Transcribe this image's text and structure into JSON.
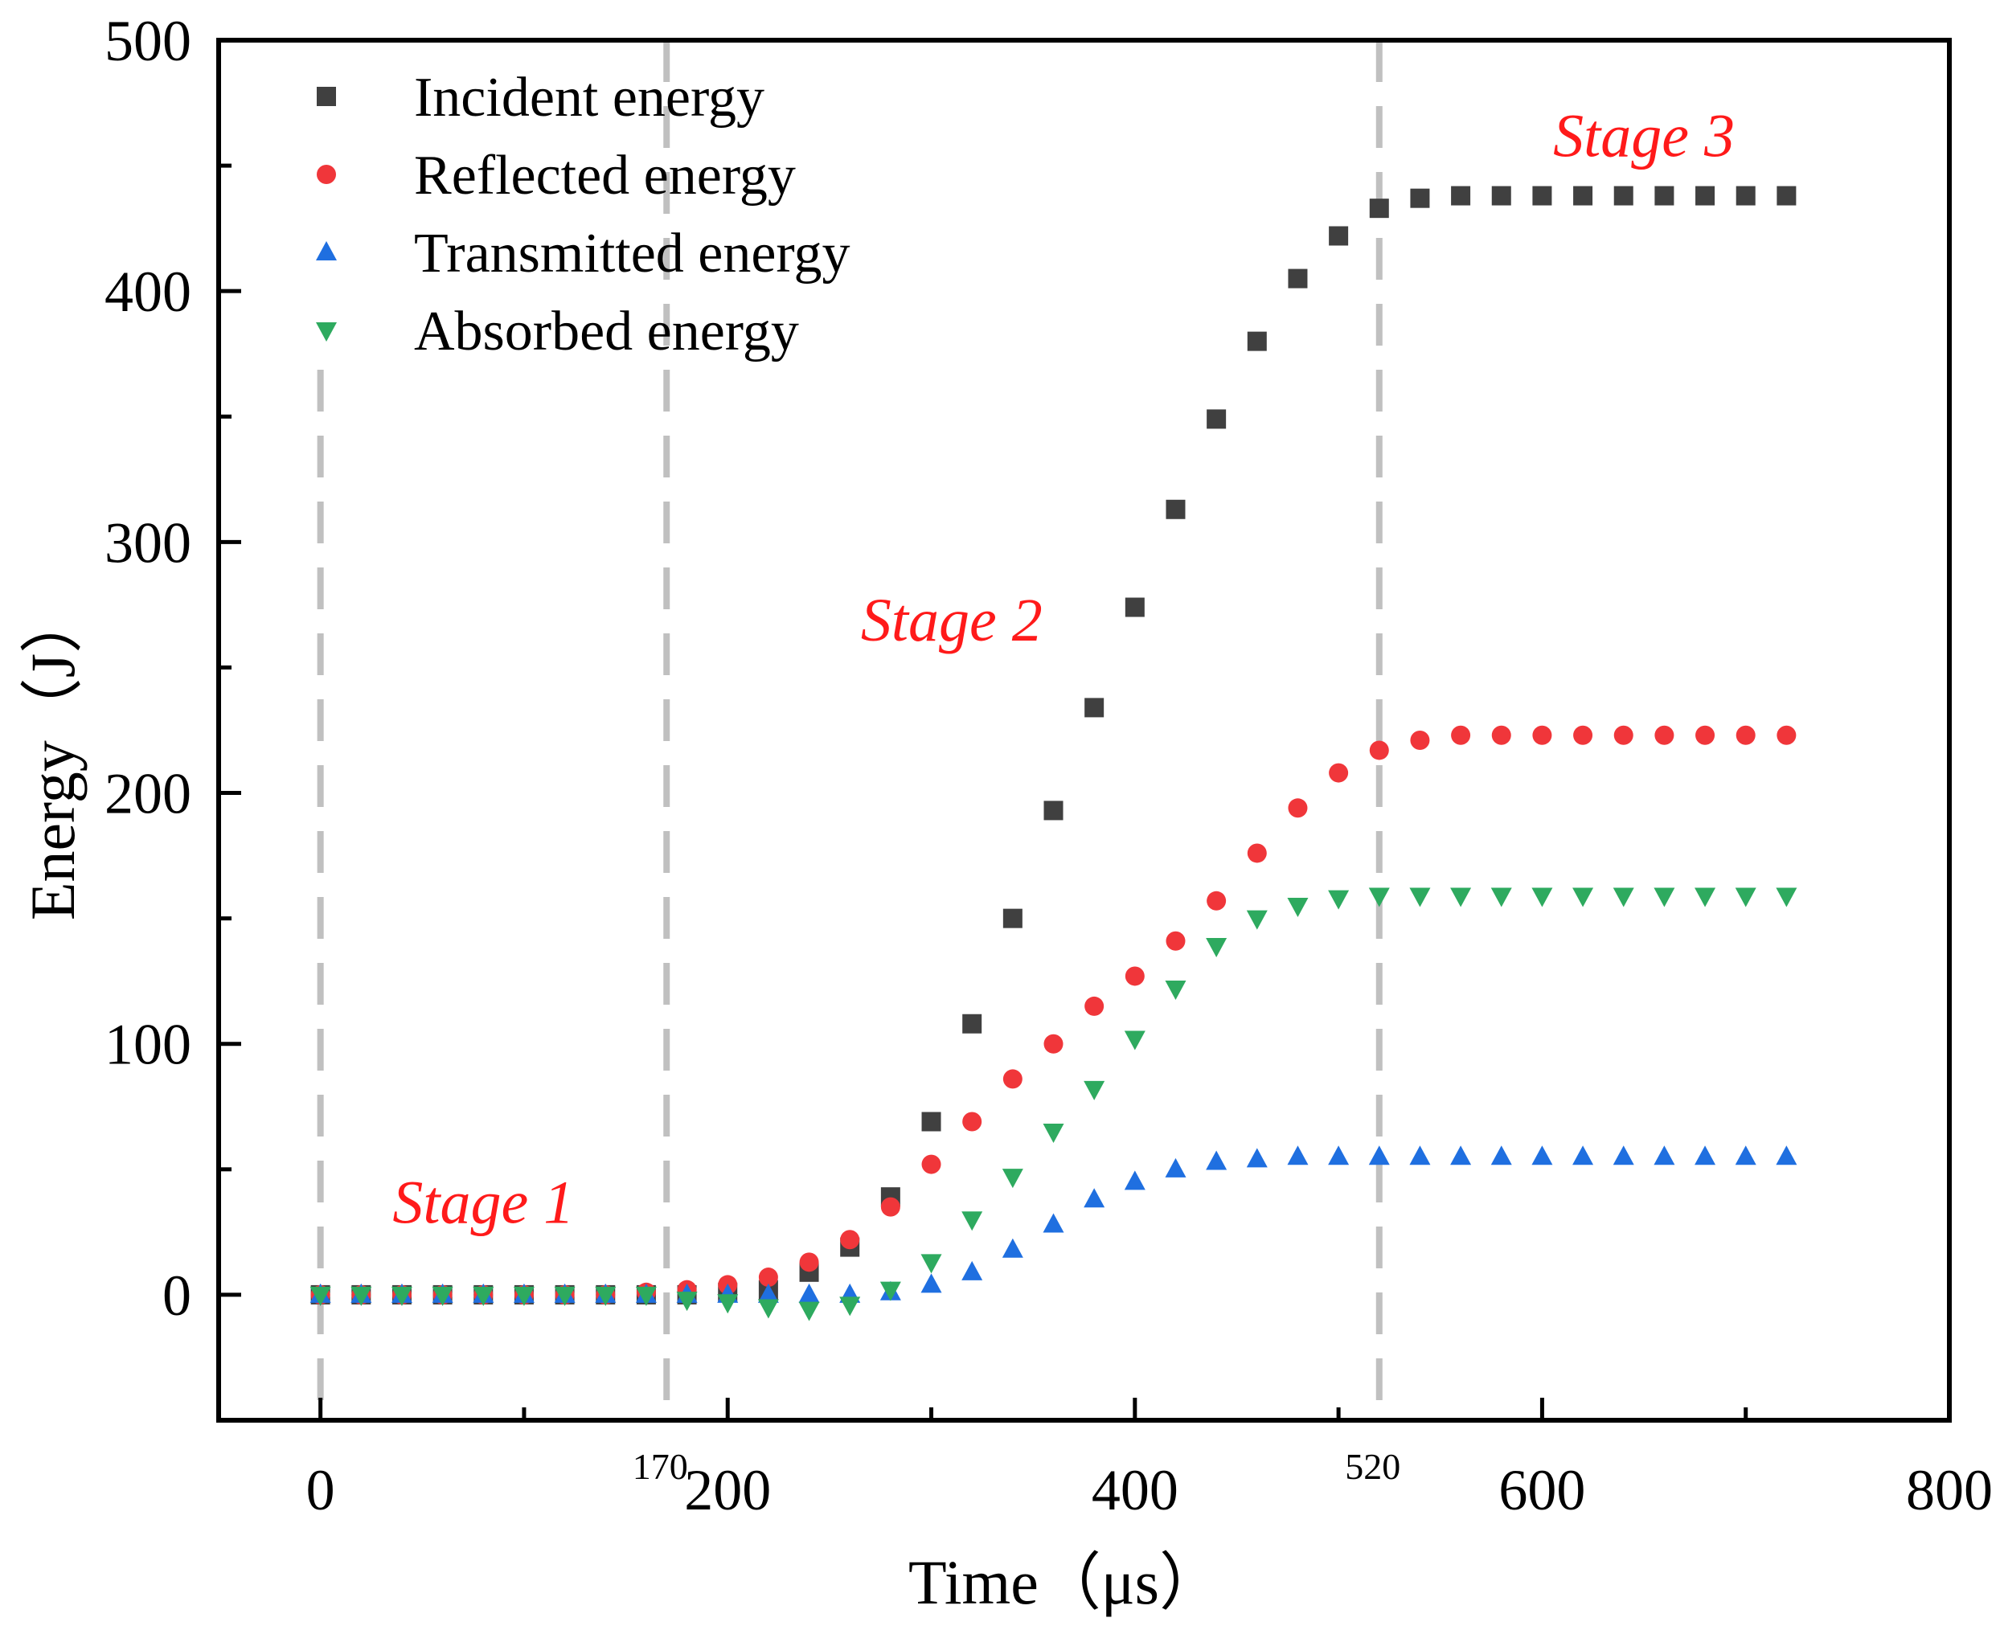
{
  "chart_data": {
    "type": "scatter",
    "xlabel": "Time（μs）",
    "ylabel": "Energy（J）",
    "xlim": [
      -50,
      800
    ],
    "ylim": [
      -50,
      500
    ],
    "xticks": [
      0,
      200,
      400,
      600,
      800
    ],
    "yticks": [
      0,
      100,
      200,
      300,
      400,
      500
    ],
    "x": [
      0,
      20,
      40,
      60,
      80,
      100,
      120,
      140,
      160,
      180,
      200,
      220,
      240,
      260,
      280,
      300,
      320,
      340,
      360,
      380,
      400,
      420,
      440,
      460,
      480,
      500,
      520,
      540,
      560,
      580,
      600,
      620,
      640,
      660,
      680,
      700,
      720
    ],
    "series": [
      {
        "name": "Incident energy",
        "marker": "square",
        "color": "#404040",
        "values": [
          0,
          0,
          0,
          0,
          0,
          0,
          0,
          0,
          0,
          0,
          1,
          2,
          9,
          19,
          39,
          69,
          108,
          150,
          193,
          234,
          274,
          313,
          349,
          380,
          405,
          422,
          433,
          437,
          438,
          438,
          438,
          438,
          438,
          438,
          438,
          438,
          438
        ]
      },
      {
        "name": "Reflected energy",
        "marker": "circle",
        "color": "#f0363a",
        "values": [
          0,
          0,
          0,
          0,
          0,
          0,
          0,
          0,
          1,
          2,
          4,
          7,
          13,
          22,
          35,
          52,
          69,
          86,
          100,
          115,
          127,
          141,
          157,
          176,
          194,
          208,
          217,
          221,
          223,
          223,
          223,
          223,
          223,
          223,
          223,
          223,
          223
        ]
      },
      {
        "name": "Transmitted energy",
        "marker": "triangle-up",
        "color": "#1f6fe0",
        "values": [
          0,
          0,
          0,
          0,
          0,
          0,
          0,
          0,
          0,
          0,
          0,
          0,
          0,
          0,
          1,
          4,
          9,
          18,
          28,
          38,
          45,
          50,
          53,
          54,
          55,
          55,
          55,
          55,
          55,
          55,
          55,
          55,
          55,
          55,
          55,
          55,
          55
        ]
      },
      {
        "name": "Absorbed energy",
        "marker": "triangle-down",
        "color": "#2eaa5f",
        "values": [
          0,
          0,
          0,
          0,
          0,
          0,
          0,
          0,
          0,
          -2,
          -3,
          -5,
          -6,
          -4,
          2,
          13,
          30,
          47,
          65,
          82,
          102,
          122,
          139,
          150,
          155,
          158,
          159,
          159,
          159,
          159,
          159,
          159,
          159,
          159,
          159,
          159,
          159
        ]
      }
    ],
    "vlines": [
      {
        "x": 0,
        "label": ""
      },
      {
        "x": 170,
        "label": "170"
      },
      {
        "x": 520,
        "label": "520"
      }
    ],
    "annotations": [
      {
        "text": "Stage 1",
        "x": 80,
        "y": 37
      },
      {
        "text": "Stage 2",
        "x": 310,
        "y": 269
      },
      {
        "text": "Stage 3",
        "x": 650,
        "y": 462
      }
    ],
    "legend_position": "top-left"
  },
  "colors": {
    "stage_text": "#ff1a1a",
    "guide_lines": "#c0c0c0",
    "axis": "#000000"
  }
}
